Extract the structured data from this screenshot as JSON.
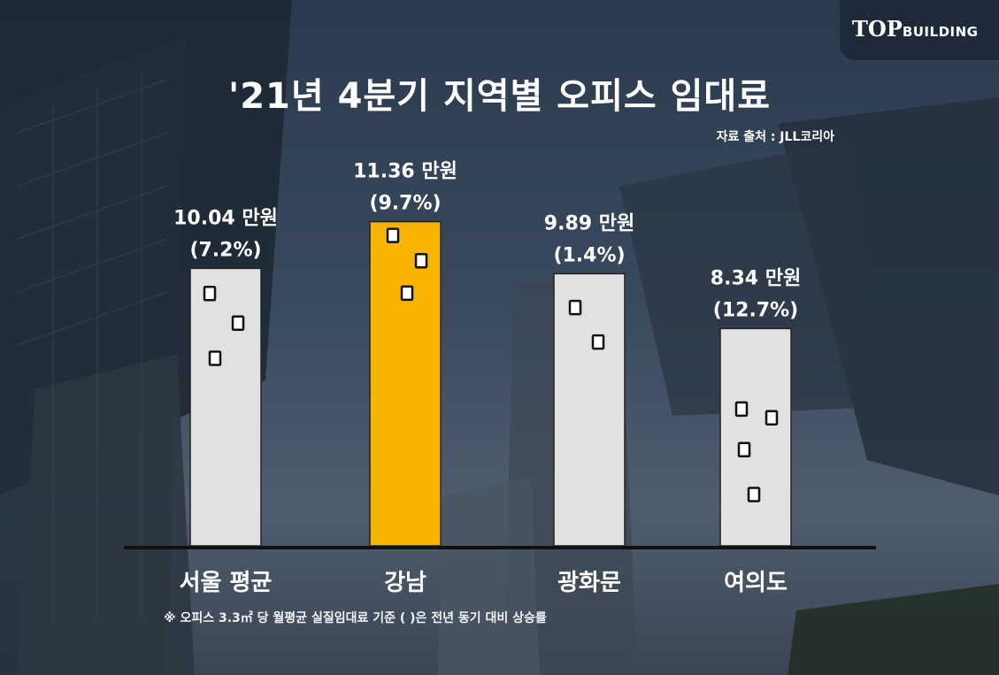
{
  "header": {
    "title": "'21년 4분기 지역별 오피스 임대료",
    "source": "자료 출처 : JLL코리아",
    "logo_main": "TOP",
    "logo_sub": "BUILDING"
  },
  "footnote": "※ 오피스 3.3㎡ 당 월평균 실질임대료 기준 (  )은 전년 동기 대비 상승률",
  "colors": {
    "bar_default": "#e1e1e1",
    "bar_highlight": "#f7b500",
    "baseline": "#111111"
  },
  "chart_data": {
    "type": "bar",
    "categories": [
      "서울 평균",
      "강남",
      "광화문",
      "여의도"
    ],
    "values": [
      10.04,
      11.36,
      9.89,
      8.34
    ],
    "value_labels": [
      "10.04 만원",
      "11.36 만원",
      "9.89 만원",
      "8.34 만원"
    ],
    "growth_labels": [
      "(7.2%)",
      "(9.7%)",
      "(1.4%)",
      "(12.7%)"
    ],
    "highlight_index": 1,
    "title": "'21년 4분기 지역별 오피스 임대료",
    "xlabel": "",
    "ylabel": "",
    "grid": false,
    "legend": "none"
  }
}
